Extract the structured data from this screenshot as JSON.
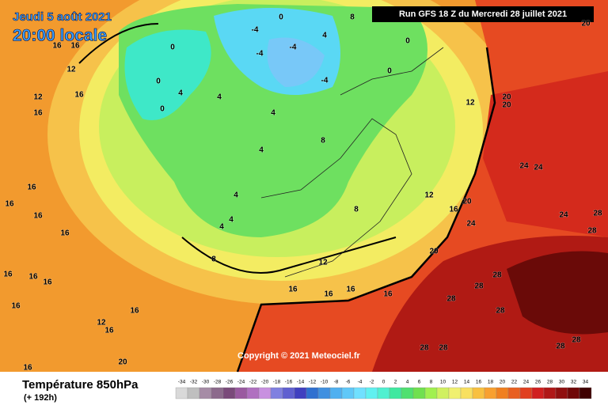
{
  "header": {
    "date": "Jeudi 5 août 2021",
    "time": "20:00 locale",
    "run": "Run GFS 18 Z du Mercredi 28 juillet 2021"
  },
  "copyright": "Copyright © 2021 Meteociel.fr",
  "footer": {
    "title": "Température 850hPa",
    "lead": "(+ 192h)"
  },
  "scale": {
    "values": [
      -34,
      -32,
      -30,
      -28,
      -26,
      -24,
      -22,
      -20,
      -18,
      -16,
      -14,
      -12,
      -10,
      -8,
      -6,
      -4,
      -2,
      0,
      2,
      4,
      6,
      8,
      10,
      12,
      14,
      16,
      18,
      20,
      22,
      24,
      26,
      28,
      30,
      32,
      34
    ],
    "colors": [
      "#d9d9d9",
      "#bfbfbf",
      "#a68ca6",
      "#8c6a8c",
      "#7a4a7a",
      "#9a5aa0",
      "#b070c0",
      "#c890e0",
      "#8080e0",
      "#6060d0",
      "#4040c0",
      "#3070d0",
      "#4090e0",
      "#50b0f0",
      "#60c8f8",
      "#70e0ff",
      "#60f0f0",
      "#50f0d0",
      "#40e8a0",
      "#50e070",
      "#70e050",
      "#a0f050",
      "#d0f060",
      "#f0f070",
      "#f8e060",
      "#f8c040",
      "#f8a030",
      "#f08020",
      "#e86020",
      "#e04020",
      "#d02020",
      "#b01818",
      "#901010",
      "#700808",
      "#400000"
    ]
  },
  "contour_labels": [
    16,
    16,
    12,
    12,
    16,
    16,
    16,
    16,
    16,
    16,
    16,
    16,
    16,
    16,
    12,
    16,
    16,
    20,
    16,
    20,
    20,
    24,
    24,
    20,
    24,
    24,
    28,
    28,
    20,
    28,
    28,
    28,
    28,
    28,
    28,
    28,
    28,
    12,
    12,
    16,
    16,
    16,
    16,
    16,
    8,
    4,
    4,
    4,
    4,
    4,
    4,
    0,
    0,
    0,
    4,
    -4,
    -4,
    -4,
    -4,
    0,
    12,
    20,
    8,
    4,
    0,
    0,
    8,
    8
  ]
}
